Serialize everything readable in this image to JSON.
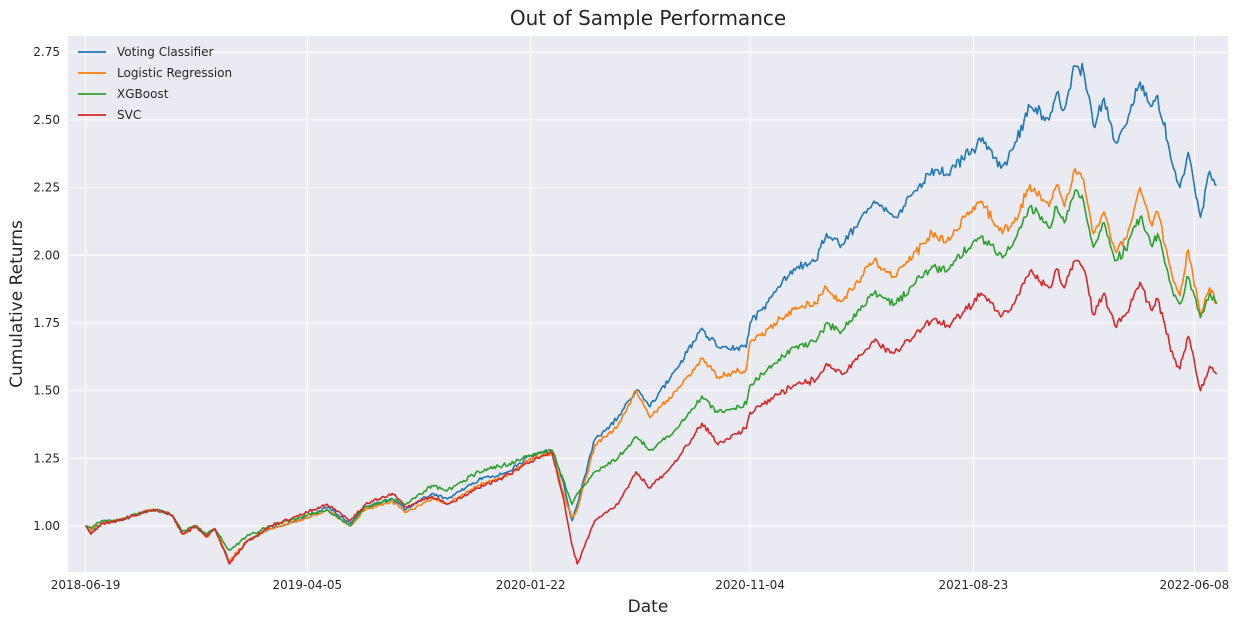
{
  "chart_data": {
    "type": "line",
    "title": "Out of Sample Performance",
    "xlabel": "Date",
    "ylabel": "Cumulative Returns",
    "x_ticks": [
      "2018-06-19",
      "2019-04-05",
      "2020-01-22",
      "2020-11-04",
      "2021-08-23",
      "2022-06-08"
    ],
    "y_ticks": [
      "1.00",
      "1.25",
      "1.50",
      "1.75",
      "2.00",
      "2.25",
      "2.50",
      "2.75"
    ],
    "xlim": [
      "2018-06-19",
      "2022-07-07"
    ],
    "ylim": [
      0.83,
      2.81
    ],
    "grid": true,
    "legend_position": "top-left",
    "background": "#eaeaf2",
    "series": [
      {
        "name": "Voting Classifier",
        "color": "#1f77b4",
        "points": [
          [
            "2018-06-19",
            1.0
          ],
          [
            "2018-06-26",
            0.98
          ],
          [
            "2018-07-10",
            1.01
          ],
          [
            "2018-08-01",
            1.02
          ],
          [
            "2018-09-01",
            1.05
          ],
          [
            "2018-09-20",
            1.06
          ],
          [
            "2018-10-10",
            1.04
          ],
          [
            "2018-10-24",
            0.97
          ],
          [
            "2018-11-10",
            1.0
          ],
          [
            "2018-11-24",
            0.96
          ],
          [
            "2018-12-05",
            0.99
          ],
          [
            "2018-12-24",
            0.87
          ],
          [
            "2019-01-15",
            0.94
          ],
          [
            "2019-02-15",
            0.99
          ],
          [
            "2019-04-05",
            1.03
          ],
          [
            "2019-05-01",
            1.07
          ],
          [
            "2019-05-31",
            1.01
          ],
          [
            "2019-06-20",
            1.07
          ],
          [
            "2019-07-25",
            1.1
          ],
          [
            "2019-08-12",
            1.06
          ],
          [
            "2019-09-15",
            1.12
          ],
          [
            "2019-10-05",
            1.1
          ],
          [
            "2019-11-15",
            1.17
          ],
          [
            "2019-12-25",
            1.2
          ],
          [
            "2020-01-22",
            1.26
          ],
          [
            "2020-02-19",
            1.28
          ],
          [
            "2020-03-05",
            1.16
          ],
          [
            "2020-03-16",
            1.02
          ],
          [
            "2020-03-23",
            1.08
          ],
          [
            "2020-04-15",
            1.32
          ],
          [
            "2020-05-15",
            1.4
          ],
          [
            "2020-06-08",
            1.5
          ],
          [
            "2020-06-26",
            1.44
          ],
          [
            "2020-07-31",
            1.58
          ],
          [
            "2020-09-02",
            1.73
          ],
          [
            "2020-09-23",
            1.66
          ],
          [
            "2020-10-30",
            1.66
          ],
          [
            "2020-11-04",
            1.75
          ],
          [
            "2020-12-31",
            1.95
          ],
          [
            "2021-01-29",
            1.98
          ],
          [
            "2021-02-12",
            2.08
          ],
          [
            "2021-03-04",
            2.04
          ],
          [
            "2021-04-15",
            2.2
          ],
          [
            "2021-05-12",
            2.14
          ],
          [
            "2021-06-30",
            2.32
          ],
          [
            "2021-07-19",
            2.3
          ],
          [
            "2021-08-23",
            2.39
          ],
          [
            "2021-09-02",
            2.42
          ],
          [
            "2021-09-30",
            2.33
          ],
          [
            "2021-10-15",
            2.4
          ],
          [
            "2021-11-05",
            2.55
          ],
          [
            "2021-11-30",
            2.5
          ],
          [
            "2021-12-10",
            2.6
          ],
          [
            "2021-12-20",
            2.54
          ],
          [
            "2022-01-03",
            2.7
          ],
          [
            "2022-01-14",
            2.68
          ],
          [
            "2022-01-27",
            2.48
          ],
          [
            "2022-02-10",
            2.58
          ],
          [
            "2022-02-24",
            2.42
          ],
          [
            "2022-03-10",
            2.48
          ],
          [
            "2022-03-29",
            2.64
          ],
          [
            "2022-04-12",
            2.55
          ],
          [
            "2022-04-21",
            2.59
          ],
          [
            "2022-05-12",
            2.32
          ],
          [
            "2022-05-20",
            2.25
          ],
          [
            "2022-05-31",
            2.38
          ],
          [
            "2022-06-16",
            2.14
          ],
          [
            "2022-06-28",
            2.31
          ],
          [
            "2022-07-07",
            2.26
          ]
        ]
      },
      {
        "name": "Logistic Regression",
        "color": "#ff7f0e",
        "points": [
          [
            "2018-06-19",
            1.0
          ],
          [
            "2018-06-26",
            0.98
          ],
          [
            "2018-07-10",
            1.01
          ],
          [
            "2018-08-01",
            1.02
          ],
          [
            "2018-09-01",
            1.05
          ],
          [
            "2018-09-20",
            1.06
          ],
          [
            "2018-10-10",
            1.04
          ],
          [
            "2018-10-24",
            0.97
          ],
          [
            "2018-11-10",
            1.0
          ],
          [
            "2018-11-24",
            0.96
          ],
          [
            "2018-12-05",
            0.99
          ],
          [
            "2018-12-24",
            0.87
          ],
          [
            "2019-01-15",
            0.94
          ],
          [
            "2019-02-15",
            0.99
          ],
          [
            "2019-04-05",
            1.03
          ],
          [
            "2019-05-01",
            1.06
          ],
          [
            "2019-05-31",
            1.0
          ],
          [
            "2019-06-20",
            1.06
          ],
          [
            "2019-07-25",
            1.09
          ],
          [
            "2019-08-12",
            1.05
          ],
          [
            "2019-09-15",
            1.1
          ],
          [
            "2019-10-05",
            1.08
          ],
          [
            "2019-11-15",
            1.15
          ],
          [
            "2019-12-25",
            1.19
          ],
          [
            "2020-01-22",
            1.25
          ],
          [
            "2020-02-19",
            1.27
          ],
          [
            "2020-03-05",
            1.12
          ],
          [
            "2020-03-16",
            1.03
          ],
          [
            "2020-03-23",
            1.06
          ],
          [
            "2020-04-15",
            1.3
          ],
          [
            "2020-05-15",
            1.37
          ],
          [
            "2020-06-08",
            1.5
          ],
          [
            "2020-06-26",
            1.4
          ],
          [
            "2020-07-31",
            1.5
          ],
          [
            "2020-09-02",
            1.62
          ],
          [
            "2020-09-23",
            1.55
          ],
          [
            "2020-10-30",
            1.58
          ],
          [
            "2020-11-04",
            1.68
          ],
          [
            "2020-12-31",
            1.8
          ],
          [
            "2021-01-29",
            1.82
          ],
          [
            "2021-02-12",
            1.88
          ],
          [
            "2021-03-04",
            1.83
          ],
          [
            "2021-04-15",
            1.98
          ],
          [
            "2021-05-12",
            1.92
          ],
          [
            "2021-06-30",
            2.08
          ],
          [
            "2021-07-19",
            2.05
          ],
          [
            "2021-08-23",
            2.18
          ],
          [
            "2021-09-02",
            2.2
          ],
          [
            "2021-09-30",
            2.08
          ],
          [
            "2021-10-15",
            2.12
          ],
          [
            "2021-11-05",
            2.26
          ],
          [
            "2021-11-30",
            2.18
          ],
          [
            "2021-12-10",
            2.26
          ],
          [
            "2021-12-20",
            2.18
          ],
          [
            "2022-01-03",
            2.32
          ],
          [
            "2022-01-14",
            2.28
          ],
          [
            "2022-01-27",
            2.08
          ],
          [
            "2022-02-10",
            2.16
          ],
          [
            "2022-02-24",
            2.02
          ],
          [
            "2022-03-10",
            2.06
          ],
          [
            "2022-03-29",
            2.25
          ],
          [
            "2022-04-12",
            2.12
          ],
          [
            "2022-04-21",
            2.16
          ],
          [
            "2022-05-12",
            1.9
          ],
          [
            "2022-05-20",
            1.85
          ],
          [
            "2022-05-31",
            2.02
          ],
          [
            "2022-06-16",
            1.78
          ],
          [
            "2022-06-28",
            1.88
          ],
          [
            "2022-07-07",
            1.83
          ]
        ]
      },
      {
        "name": "XGBoost",
        "color": "#2ca02c",
        "points": [
          [
            "2018-06-19",
            1.0
          ],
          [
            "2018-06-26",
            0.99
          ],
          [
            "2018-07-10",
            1.02
          ],
          [
            "2018-08-01",
            1.02
          ],
          [
            "2018-09-01",
            1.05
          ],
          [
            "2018-09-20",
            1.06
          ],
          [
            "2018-10-10",
            1.04
          ],
          [
            "2018-10-24",
            0.98
          ],
          [
            "2018-11-10",
            1.0
          ],
          [
            "2018-11-24",
            0.97
          ],
          [
            "2018-12-05",
            0.99
          ],
          [
            "2018-12-24",
            0.91
          ],
          [
            "2019-01-15",
            0.96
          ],
          [
            "2019-02-15",
            1.0
          ],
          [
            "2019-04-05",
            1.04
          ],
          [
            "2019-05-01",
            1.06
          ],
          [
            "2019-05-31",
            1.0
          ],
          [
            "2019-06-20",
            1.07
          ],
          [
            "2019-07-25",
            1.1
          ],
          [
            "2019-08-12",
            1.08
          ],
          [
            "2019-09-15",
            1.15
          ],
          [
            "2019-10-05",
            1.13
          ],
          [
            "2019-11-15",
            1.2
          ],
          [
            "2019-12-25",
            1.23
          ],
          [
            "2020-01-22",
            1.26
          ],
          [
            "2020-02-19",
            1.28
          ],
          [
            "2020-03-05",
            1.17
          ],
          [
            "2020-03-16",
            1.08
          ],
          [
            "2020-03-23",
            1.12
          ],
          [
            "2020-04-15",
            1.2
          ],
          [
            "2020-05-15",
            1.25
          ],
          [
            "2020-06-08",
            1.33
          ],
          [
            "2020-06-26",
            1.28
          ],
          [
            "2020-07-31",
            1.36
          ],
          [
            "2020-09-02",
            1.48
          ],
          [
            "2020-09-23",
            1.42
          ],
          [
            "2020-10-30",
            1.45
          ],
          [
            "2020-11-04",
            1.52
          ],
          [
            "2020-12-31",
            1.66
          ],
          [
            "2021-01-29",
            1.68
          ],
          [
            "2021-02-12",
            1.75
          ],
          [
            "2021-03-04",
            1.72
          ],
          [
            "2021-04-15",
            1.86
          ],
          [
            "2021-05-12",
            1.82
          ],
          [
            "2021-06-30",
            1.96
          ],
          [
            "2021-07-19",
            1.94
          ],
          [
            "2021-08-23",
            2.05
          ],
          [
            "2021-09-02",
            2.07
          ],
          [
            "2021-09-30",
            1.99
          ],
          [
            "2021-10-15",
            2.05
          ],
          [
            "2021-11-05",
            2.18
          ],
          [
            "2021-11-30",
            2.1
          ],
          [
            "2021-12-10",
            2.18
          ],
          [
            "2021-12-20",
            2.12
          ],
          [
            "2022-01-03",
            2.24
          ],
          [
            "2022-01-14",
            2.2
          ],
          [
            "2022-01-27",
            2.03
          ],
          [
            "2022-02-10",
            2.12
          ],
          [
            "2022-02-24",
            1.98
          ],
          [
            "2022-03-10",
            2.02
          ],
          [
            "2022-03-29",
            2.14
          ],
          [
            "2022-04-12",
            2.04
          ],
          [
            "2022-04-21",
            2.08
          ],
          [
            "2022-05-12",
            1.85
          ],
          [
            "2022-05-20",
            1.82
          ],
          [
            "2022-05-31",
            1.92
          ],
          [
            "2022-06-16",
            1.77
          ],
          [
            "2022-06-28",
            1.86
          ],
          [
            "2022-07-07",
            1.82
          ]
        ]
      },
      {
        "name": "SVC",
        "color": "#d62728",
        "points": [
          [
            "2018-06-19",
            1.0
          ],
          [
            "2018-06-26",
            0.97
          ],
          [
            "2018-07-10",
            1.01
          ],
          [
            "2018-08-01",
            1.02
          ],
          [
            "2018-09-01",
            1.05
          ],
          [
            "2018-09-20",
            1.06
          ],
          [
            "2018-10-10",
            1.04
          ],
          [
            "2018-10-24",
            0.97
          ],
          [
            "2018-11-10",
            1.0
          ],
          [
            "2018-11-24",
            0.96
          ],
          [
            "2018-12-05",
            0.99
          ],
          [
            "2018-12-24",
            0.86
          ],
          [
            "2019-01-15",
            0.94
          ],
          [
            "2019-02-15",
            1.0
          ],
          [
            "2019-04-05",
            1.05
          ],
          [
            "2019-05-01",
            1.08
          ],
          [
            "2019-05-31",
            1.02
          ],
          [
            "2019-06-20",
            1.08
          ],
          [
            "2019-07-25",
            1.12
          ],
          [
            "2019-08-12",
            1.07
          ],
          [
            "2019-09-15",
            1.11
          ],
          [
            "2019-10-05",
            1.08
          ],
          [
            "2019-11-15",
            1.14
          ],
          [
            "2019-12-25",
            1.19
          ],
          [
            "2020-01-22",
            1.24
          ],
          [
            "2020-02-19",
            1.27
          ],
          [
            "2020-03-05",
            1.1
          ],
          [
            "2020-03-16",
            0.93
          ],
          [
            "2020-03-23",
            0.86
          ],
          [
            "2020-04-15",
            1.02
          ],
          [
            "2020-05-15",
            1.08
          ],
          [
            "2020-06-08",
            1.2
          ],
          [
            "2020-06-26",
            1.14
          ],
          [
            "2020-07-31",
            1.24
          ],
          [
            "2020-09-02",
            1.38
          ],
          [
            "2020-09-23",
            1.3
          ],
          [
            "2020-10-30",
            1.36
          ],
          [
            "2020-11-04",
            1.42
          ],
          [
            "2020-12-31",
            1.52
          ],
          [
            "2021-01-29",
            1.54
          ],
          [
            "2021-02-12",
            1.6
          ],
          [
            "2021-03-04",
            1.56
          ],
          [
            "2021-04-15",
            1.68
          ],
          [
            "2021-05-12",
            1.64
          ],
          [
            "2021-06-30",
            1.76
          ],
          [
            "2021-07-19",
            1.74
          ],
          [
            "2021-08-23",
            1.82
          ],
          [
            "2021-09-02",
            1.86
          ],
          [
            "2021-09-30",
            1.78
          ],
          [
            "2021-10-15",
            1.82
          ],
          [
            "2021-11-05",
            1.94
          ],
          [
            "2021-11-30",
            1.88
          ],
          [
            "2021-12-10",
            1.95
          ],
          [
            "2021-12-20",
            1.88
          ],
          [
            "2022-01-03",
            1.98
          ],
          [
            "2022-01-14",
            1.95
          ],
          [
            "2022-01-27",
            1.78
          ],
          [
            "2022-02-10",
            1.86
          ],
          [
            "2022-02-24",
            1.74
          ],
          [
            "2022-03-10",
            1.78
          ],
          [
            "2022-03-29",
            1.9
          ],
          [
            "2022-04-12",
            1.8
          ],
          [
            "2022-04-21",
            1.84
          ],
          [
            "2022-05-12",
            1.62
          ],
          [
            "2022-05-20",
            1.58
          ],
          [
            "2022-05-31",
            1.7
          ],
          [
            "2022-06-16",
            1.5
          ],
          [
            "2022-06-28",
            1.59
          ],
          [
            "2022-07-07",
            1.56
          ]
        ]
      }
    ]
  }
}
